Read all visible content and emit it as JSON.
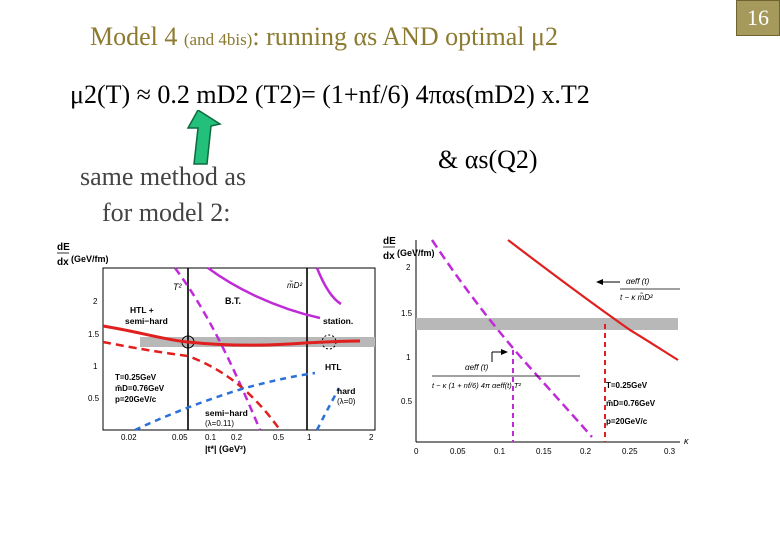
{
  "slide": {
    "title_main": "Model 4 ",
    "title_small": "(and 4bis)",
    "title_rest": ": running αs AND optimal μ2",
    "page_number": "16",
    "formula_line": "μ2(T) ≈ 0.2 mD2 (T2)= (1+nf/6) 4παs(mD2) x.T2",
    "formula_and": "&   αs(Q2)",
    "same_method_line1": "same method as",
    "same_method_line2": "for model 2:"
  },
  "left_plot": {
    "ylabel_top": "dE",
    "ylabel_bottom": "dx",
    "yunit": "(GeV/fm)",
    "xlabel": "|t*| (GeV²)",
    "yticks": [
      "2",
      "1.5",
      "1",
      "0.5"
    ],
    "xticks": [
      "0.02",
      "0.05",
      "0.1",
      "0.2",
      "0.5",
      "1",
      "2"
    ],
    "annotations": {
      "t2": "T²",
      "mD2": "m̃D²",
      "bt": "B.T.",
      "htl_semihard": "HTL +",
      "semihard2": "semi−hard",
      "station": "station.",
      "htl": "HTL",
      "params1": "T=0.25GeV",
      "params2": "m̃D=0.76GeV",
      "params3": "p=20GeV/c",
      "hard": "hard",
      "lambda0": "(λ=0)",
      "semihard_low": "semi−hard",
      "lambda011": "(λ=0.11)"
    },
    "colors": {
      "red": "#e0201e",
      "purple": "#c02bd8",
      "blue": "#2a72d8",
      "gray": "#b8b8b8"
    }
  },
  "right_plot": {
    "ylabel_top": "dE",
    "ylabel_bottom": "dx",
    "yunit": "(GeV/fm)",
    "yticks": [
      "2",
      "1.5",
      "1",
      "0.5"
    ],
    "xticks": [
      "0",
      "0.05",
      "0.1",
      "0.15",
      "0.2",
      "0.25",
      "0.3"
    ],
    "xlabel": "κ",
    "annotations": {
      "aeff": "αeff (t)",
      "denom": "t − κ m̃D²",
      "aeff2": "αeff (t)",
      "denom2": "t − κ (1 + nf/6) 4π αeff(t) T²",
      "params1": "T=0.25GeV",
      "params2": "m̃D=0.76GeV",
      "params3": "p=20GeV/c"
    }
  }
}
